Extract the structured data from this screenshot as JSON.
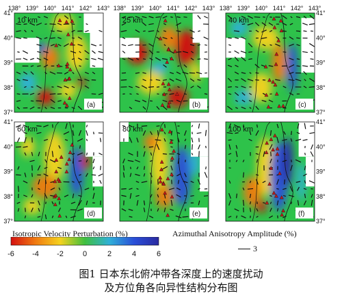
{
  "panels": [
    {
      "depth": "10 km",
      "letter": "(a)"
    },
    {
      "depth": "25 km",
      "letter": "(b)"
    },
    {
      "depth": "40 km",
      "letter": "(c)"
    },
    {
      "depth": "60 km",
      "letter": "(d)"
    },
    {
      "depth": "80 km",
      "letter": "(e)"
    },
    {
      "depth": "100 km",
      "letter": "(f)"
    }
  ],
  "longitude_ticks": [
    "138°",
    "139°",
    "140°",
    "141°",
    "142°",
    "143°"
  ],
  "latitude_ticks": [
    "41°",
    "40°",
    "39°",
    "38°",
    "37°"
  ],
  "colorbar": {
    "title": "Isotropic Velocity Perturbation (%)",
    "ticks": [
      "-6",
      "-4",
      "-2",
      "0",
      "2",
      "4",
      "6"
    ],
    "range": [
      -6,
      6
    ],
    "colors": [
      "#d41010",
      "#f07a10",
      "#f5d21e",
      "#3fbf3f",
      "#2fb0d8",
      "#2a4fd8",
      "#2a2aa0"
    ]
  },
  "anisotropy_legend": {
    "title": "Azimuthal Anisotropy Amplitude (%)",
    "scale_value": "3"
  },
  "caption": {
    "line1": "图1  日本东北俯冲带各深度上的速度扰动",
    "line2": "及方位角各向异性结构分布图"
  }
}
